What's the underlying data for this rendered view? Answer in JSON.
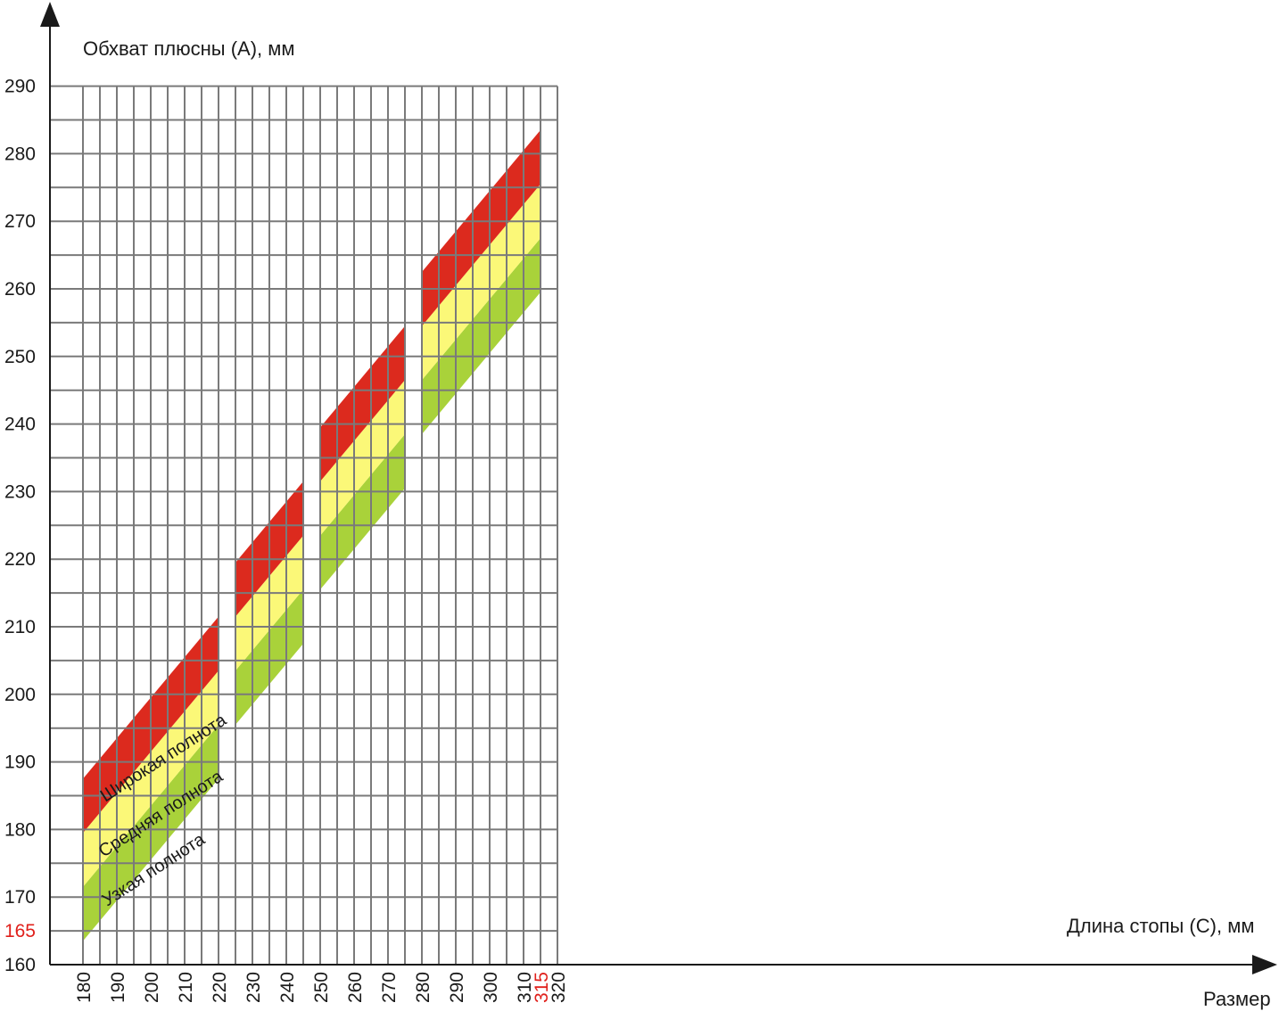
{
  "chart_data": {
    "type": "area",
    "title": "",
    "ylabel": "Обхват плюсны (А), мм",
    "xlabel": "Длина стопы (С), мм",
    "xlabel2": "Размер",
    "xlim": [
      175,
      320
    ],
    "ylim": [
      160,
      290
    ],
    "grid": true,
    "x_ticks": [
      180,
      190,
      200,
      210,
      220,
      230,
      240,
      250,
      260,
      270,
      280,
      290,
      300,
      310,
      315,
      320
    ],
    "x_tick_labels": [
      "180",
      "190",
      "200",
      "210",
      "220",
      "230",
      "240",
      "250",
      "260",
      "270",
      "280",
      "290",
      "300",
      "310",
      "315",
      "320"
    ],
    "y_ticks": [
      160,
      165,
      170,
      180,
      190,
      200,
      210,
      220,
      230,
      240,
      250,
      260,
      270,
      280,
      290
    ],
    "y_tick_labels": [
      "160",
      "165",
      "170",
      "180",
      "190",
      "200",
      "210",
      "220",
      "230",
      "240",
      "250",
      "260",
      "270",
      "280",
      "290"
    ],
    "highlight_ticks": {
      "x": "315",
      "y": "165",
      "color": "#e0201b"
    },
    "colors": {
      "wide": "#dc2a1e",
      "medium": "#fbf878",
      "narrow": "#a9d23a",
      "grid": "#7a7a7a",
      "axis": "#1a1a1a"
    },
    "band_labels": {
      "wide": "Широкая полнота",
      "medium": "Средняя полнота",
      "narrow": "Узкая полнота"
    },
    "segments": [
      {
        "x_start": 180,
        "x_end": 220,
        "boundaries_start": [
          163.5,
          171.5,
          179.5,
          187.5
        ],
        "boundaries_end": [
          187.5,
          195.5,
          203.5,
          211.5
        ]
      },
      {
        "x_start": 225,
        "x_end": 245,
        "boundaries_start": [
          195.5,
          203.5,
          211.5,
          219.5
        ],
        "boundaries_end": [
          207.5,
          215.5,
          223.5,
          231.5
        ]
      },
      {
        "x_start": 250,
        "x_end": 275,
        "boundaries_start": [
          215.5,
          223.5,
          231.5,
          239.5
        ],
        "boundaries_end": [
          230.5,
          238.5,
          246.5,
          254.5
        ]
      },
      {
        "x_start": 280,
        "x_end": 315,
        "boundaries_start": [
          238.5,
          246.5,
          254.5,
          262.5
        ],
        "boundaries_end": [
          259.5,
          267.5,
          275.5,
          283.5
        ]
      }
    ]
  }
}
